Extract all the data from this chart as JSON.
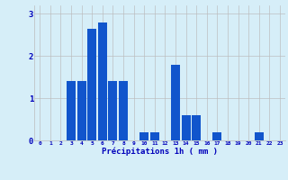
{
  "values": [
    0,
    0,
    0,
    1.4,
    1.4,
    2.65,
    2.8,
    1.4,
    1.4,
    0,
    0.2,
    0.2,
    0,
    1.8,
    0.6,
    0.6,
    0,
    0.2,
    0,
    0,
    0,
    0.2,
    0,
    0
  ],
  "categories": [
    "0",
    "1",
    "2",
    "3",
    "4",
    "5",
    "6",
    "7",
    "8",
    "9",
    "10",
    "11",
    "12",
    "13",
    "14",
    "15",
    "16",
    "17",
    "18",
    "19",
    "20",
    "21",
    "22",
    "23"
  ],
  "bar_color": "#1155cc",
  "background_color": "#d6eef8",
  "grid_color": "#bbbbbb",
  "xlabel": "Précipitations 1h ( mm )",
  "xlabel_color": "#0000bb",
  "tick_color": "#0000bb",
  "ylim": [
    0,
    3.2
  ],
  "yticks": [
    0,
    1,
    2,
    3
  ],
  "bar_width": 0.85,
  "figwidth": 3.2,
  "figheight": 2.0,
  "dpi": 100
}
